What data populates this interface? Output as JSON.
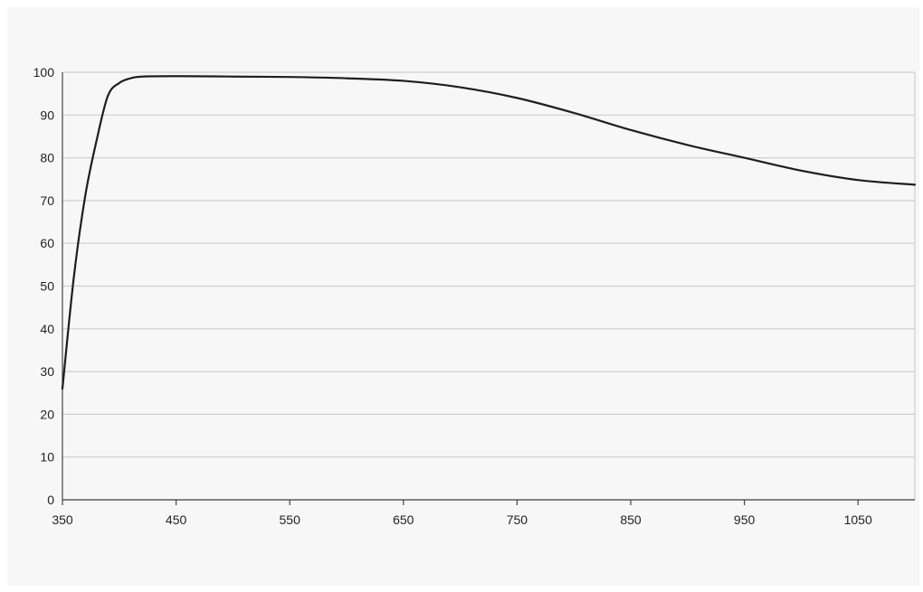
{
  "chart_data": {
    "type": "line",
    "title": "",
    "xlabel": "",
    "ylabel": "",
    "xlim": [
      350,
      1100
    ],
    "ylim": [
      0,
      100
    ],
    "x_ticks": [
      350,
      450,
      550,
      650,
      750,
      850,
      950,
      1050
    ],
    "y_ticks": [
      0,
      10,
      20,
      30,
      40,
      50,
      60,
      70,
      80,
      90,
      100
    ],
    "grid": "horizontal",
    "legend": "none",
    "series": [
      {
        "color": "#1e1e1e",
        "x": [
          350,
          360,
          370,
          380,
          390,
          400,
          410,
          420,
          450,
          500,
          550,
          600,
          650,
          700,
          750,
          800,
          850,
          900,
          950,
          1000,
          1050,
          1100
        ],
        "y": [
          26,
          52,
          71,
          84,
          94.5,
          97.5,
          98.6,
          99,
          99.1,
          99,
          98.9,
          98.6,
          98,
          96.5,
          94,
          90.5,
          86.5,
          83,
          80,
          77,
          74.8,
          73.7
        ]
      }
    ]
  }
}
